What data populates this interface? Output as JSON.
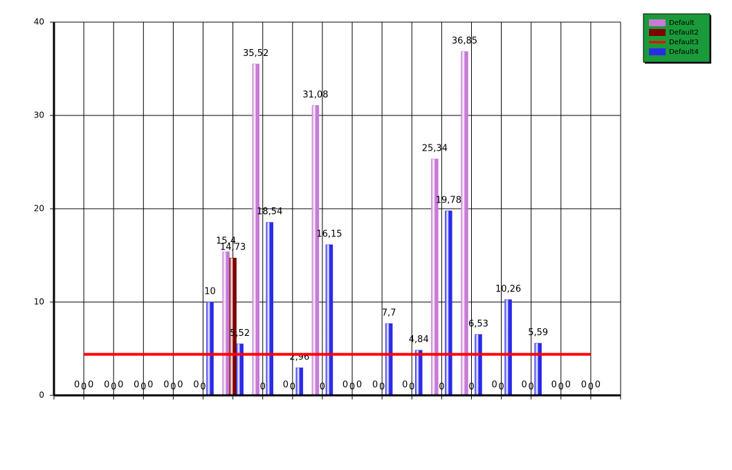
{
  "chart_data": {
    "type": "bar",
    "categories": [
      null,
      null,
      null,
      null,
      null,
      null,
      null,
      null,
      null,
      null,
      null,
      null,
      null,
      null,
      null,
      null,
      null,
      null
    ],
    "series": [
      {
        "name": "Default",
        "color": "#c77ad6",
        "values": [
          0,
          0,
          0,
          0,
          0,
          15.4,
          35.52,
          0,
          31.08,
          0,
          0,
          0,
          25.34,
          36.85,
          0,
          0,
          0,
          0
        ],
        "value_labels": [
          "0",
          "0",
          "0",
          "0",
          "0",
          "15,4",
          "35,52",
          "0",
          "31,08",
          "0",
          "0",
          "0",
          "25,34",
          "36,85",
          "0",
          "0",
          "0",
          "0"
        ]
      },
      {
        "name": "Default2",
        "color": "#800000",
        "values": [
          0,
          0,
          0,
          0,
          0,
          14.73,
          0,
          0,
          0,
          0,
          0,
          0,
          0,
          0,
          0,
          0,
          0,
          0
        ],
        "value_labels": [
          "0",
          "0",
          "0",
          "0",
          "0",
          "14,73",
          "0",
          "0",
          "0",
          "0",
          "0",
          "0",
          "0",
          "0",
          "0",
          "0",
          "0",
          "0"
        ]
      },
      {
        "name": "Default3",
        "color": "#ff0000",
        "type": "line",
        "values": [
          4.4,
          4.4,
          4.4,
          4.4,
          4.4,
          4.4,
          4.4,
          4.4,
          4.4,
          4.4,
          4.4,
          4.4,
          4.4,
          4.4,
          4.4,
          4.4,
          4.4,
          4.4
        ]
      },
      {
        "name": "Default4",
        "color": "#2a2ae8",
        "values": [
          0,
          0,
          0,
          0,
          10,
          5.52,
          18.54,
          2.96,
          16.15,
          0,
          7.7,
          4.84,
          19.78,
          6.53,
          10.26,
          5.59,
          0,
          0
        ],
        "value_labels": [
          "0",
          "0",
          "0",
          "0",
          "10",
          "5,52",
          "18,54",
          "2,96",
          "16,15",
          "0",
          "7,7",
          "4,84",
          "19,78",
          "6,53",
          "10,26",
          "5,59",
          "0",
          "0"
        ]
      }
    ],
    "ylim": [
      0,
      40
    ],
    "yticks": [
      0,
      10,
      20,
      30,
      40
    ],
    "grid": true,
    "legend": "top-right"
  }
}
